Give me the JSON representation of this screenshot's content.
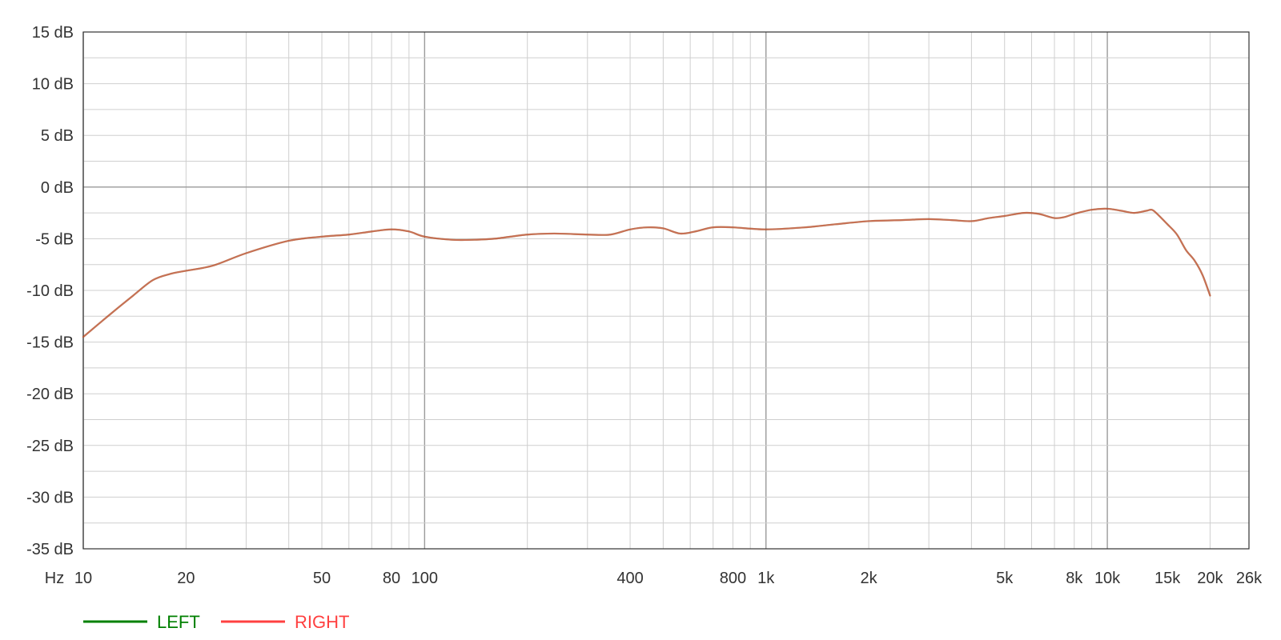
{
  "chart_data": {
    "type": "line",
    "x_unit_label": "Hz",
    "x_scale": "log",
    "xlim": [
      10,
      26000
    ],
    "ylim": [
      -35,
      15
    ],
    "x_ticks": [
      {
        "value": 10,
        "label": "10"
      },
      {
        "value": 20,
        "label": "20"
      },
      {
        "value": 50,
        "label": "50"
      },
      {
        "value": 80,
        "label": "80"
      },
      {
        "value": 100,
        "label": "100"
      },
      {
        "value": 400,
        "label": "400"
      },
      {
        "value": 800,
        "label": "800"
      },
      {
        "value": 1000,
        "label": "1k"
      },
      {
        "value": 2000,
        "label": "2k"
      },
      {
        "value": 5000,
        "label": "5k"
      },
      {
        "value": 8000,
        "label": "8k"
      },
      {
        "value": 10000,
        "label": "10k"
      },
      {
        "value": 15000,
        "label": "15k"
      },
      {
        "value": 20000,
        "label": "20k"
      },
      {
        "value": 26000,
        "label": "26k"
      }
    ],
    "y_ticks": [
      {
        "value": 15,
        "label": "15 dB"
      },
      {
        "value": 10,
        "label": "10 dB"
      },
      {
        "value": 5,
        "label": "5 dB"
      },
      {
        "value": 0,
        "label": "0 dB"
      },
      {
        "value": -5,
        "label": "-5 dB"
      },
      {
        "value": -10,
        "label": "-10 dB"
      },
      {
        "value": -15,
        "label": "-15 dB"
      },
      {
        "value": -20,
        "label": "-20 dB"
      },
      {
        "value": -25,
        "label": "-25 dB"
      },
      {
        "value": -30,
        "label": "-30 dB"
      },
      {
        "value": -35,
        "label": "-35 dB"
      }
    ],
    "grid": true,
    "legend_placement": "bottom-left",
    "series": [
      {
        "name": "LEFT",
        "color": "#008000",
        "points": [
          [
            10,
            -14.5
          ],
          [
            12,
            -12.3
          ],
          [
            14,
            -10.5
          ],
          [
            16,
            -9.0
          ],
          [
            18,
            -8.4
          ],
          [
            20,
            -8.1
          ],
          [
            24,
            -7.6
          ],
          [
            30,
            -6.4
          ],
          [
            40,
            -5.2
          ],
          [
            50,
            -4.8
          ],
          [
            60,
            -4.6
          ],
          [
            70,
            -4.3
          ],
          [
            80,
            -4.1
          ],
          [
            90,
            -4.3
          ],
          [
            100,
            -4.8
          ],
          [
            120,
            -5.1
          ],
          [
            140,
            -5.1
          ],
          [
            160,
            -5.0
          ],
          [
            200,
            -4.6
          ],
          [
            240,
            -4.5
          ],
          [
            300,
            -4.6
          ],
          [
            350,
            -4.6
          ],
          [
            400,
            -4.1
          ],
          [
            450,
            -3.9
          ],
          [
            500,
            -4.0
          ],
          [
            560,
            -4.5
          ],
          [
            620,
            -4.3
          ],
          [
            700,
            -3.9
          ],
          [
            800,
            -3.9
          ],
          [
            1000,
            -4.1
          ],
          [
            1300,
            -3.9
          ],
          [
            1600,
            -3.6
          ],
          [
            2000,
            -3.3
          ],
          [
            2500,
            -3.2
          ],
          [
            3000,
            -3.1
          ],
          [
            3500,
            -3.2
          ],
          [
            4000,
            -3.3
          ],
          [
            4500,
            -3.0
          ],
          [
            5000,
            -2.8
          ],
          [
            5700,
            -2.5
          ],
          [
            6300,
            -2.6
          ],
          [
            7000,
            -3.0
          ],
          [
            7500,
            -2.9
          ],
          [
            8000,
            -2.6
          ],
          [
            9000,
            -2.2
          ],
          [
            10000,
            -2.1
          ],
          [
            11000,
            -2.3
          ],
          [
            12000,
            -2.5
          ],
          [
            13000,
            -2.3
          ],
          [
            13500,
            -2.2
          ],
          [
            14000,
            -2.6
          ],
          [
            15000,
            -3.6
          ],
          [
            16000,
            -4.6
          ],
          [
            17000,
            -6.1
          ],
          [
            18000,
            -7.1
          ],
          [
            19000,
            -8.5
          ],
          [
            20000,
            -10.5
          ]
        ]
      },
      {
        "name": "RIGHT",
        "color": "#ff4040",
        "points": [
          [
            10,
            -14.5
          ],
          [
            12,
            -12.3
          ],
          [
            14,
            -10.5
          ],
          [
            16,
            -9.0
          ],
          [
            18,
            -8.4
          ],
          [
            20,
            -8.1
          ],
          [
            24,
            -7.6
          ],
          [
            30,
            -6.4
          ],
          [
            40,
            -5.2
          ],
          [
            50,
            -4.8
          ],
          [
            60,
            -4.6
          ],
          [
            70,
            -4.3
          ],
          [
            80,
            -4.1
          ],
          [
            90,
            -4.3
          ],
          [
            100,
            -4.8
          ],
          [
            120,
            -5.1
          ],
          [
            140,
            -5.1
          ],
          [
            160,
            -5.0
          ],
          [
            200,
            -4.6
          ],
          [
            240,
            -4.5
          ],
          [
            300,
            -4.6
          ],
          [
            350,
            -4.6
          ],
          [
            400,
            -4.1
          ],
          [
            450,
            -3.9
          ],
          [
            500,
            -4.0
          ],
          [
            560,
            -4.5
          ],
          [
            620,
            -4.3
          ],
          [
            700,
            -3.9
          ],
          [
            800,
            -3.9
          ],
          [
            1000,
            -4.1
          ],
          [
            1300,
            -3.9
          ],
          [
            1600,
            -3.6
          ],
          [
            2000,
            -3.3
          ],
          [
            2500,
            -3.2
          ],
          [
            3000,
            -3.1
          ],
          [
            3500,
            -3.2
          ],
          [
            4000,
            -3.3
          ],
          [
            4500,
            -3.0
          ],
          [
            5000,
            -2.8
          ],
          [
            5700,
            -2.5
          ],
          [
            6300,
            -2.6
          ],
          [
            7000,
            -3.0
          ],
          [
            7500,
            -2.9
          ],
          [
            8000,
            -2.6
          ],
          [
            9000,
            -2.2
          ],
          [
            10000,
            -2.1
          ],
          [
            11000,
            -2.3
          ],
          [
            12000,
            -2.5
          ],
          [
            13000,
            -2.3
          ],
          [
            13500,
            -2.2
          ],
          [
            14000,
            -2.6
          ],
          [
            15000,
            -3.6
          ],
          [
            16000,
            -4.6
          ],
          [
            17000,
            -6.1
          ],
          [
            18000,
            -7.1
          ],
          [
            19000,
            -8.5
          ],
          [
            20000,
            -10.5
          ]
        ]
      }
    ],
    "overlap_line_color": "#c86040"
  }
}
